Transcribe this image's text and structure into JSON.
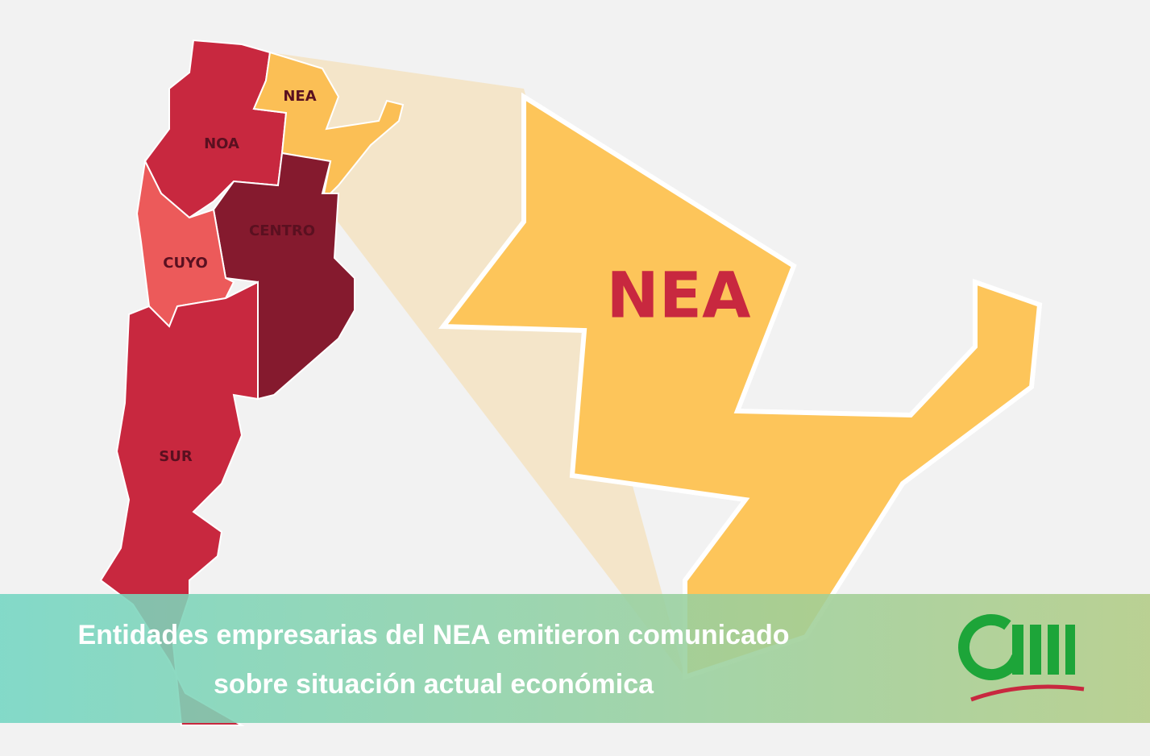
{
  "map": {
    "regions": [
      "NEA",
      "NOA",
      "CENTRO",
      "CUYO",
      "SUR"
    ],
    "zoom_label": "NEA"
  },
  "headline": {
    "lines": [
      "Entidades empresarias del NEA emitieron comunicado",
      "sobre situación actual económica"
    ]
  }
}
